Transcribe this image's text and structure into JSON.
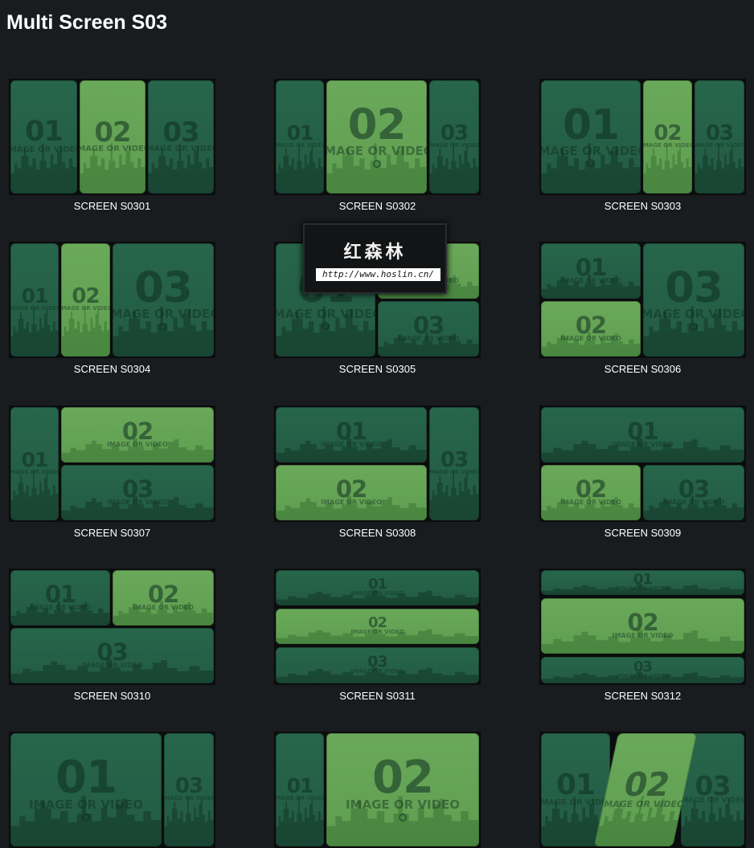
{
  "page": {
    "title": "Multi Screen S03"
  },
  "thumb_text": {
    "sub": "IMAGE OR VIDEO"
  },
  "watermark": {
    "title": "红森林",
    "url": "http://www.hoslin.cn/"
  },
  "colors": {
    "background": "#191c1f",
    "dark_cell": "#27664b",
    "light_cell": "#6aa95a",
    "frame": "#0b0c0d"
  },
  "screens": [
    {
      "name": "SCREEN S0301",
      "cells": [
        {
          "n": "01",
          "tone": "dark"
        },
        {
          "n": "02",
          "tone": "light"
        },
        {
          "n": "03",
          "tone": "dark"
        }
      ]
    },
    {
      "name": "SCREEN S0302",
      "cells": [
        {
          "n": "01",
          "tone": "dark"
        },
        {
          "n": "02",
          "tone": "light"
        },
        {
          "n": "03",
          "tone": "dark"
        }
      ]
    },
    {
      "name": "SCREEN S0303",
      "cells": [
        {
          "n": "01",
          "tone": "dark"
        },
        {
          "n": "02",
          "tone": "light"
        },
        {
          "n": "03",
          "tone": "dark"
        }
      ]
    },
    {
      "name": "SCREEN S0304",
      "cells": [
        {
          "n": "01",
          "tone": "dark"
        },
        {
          "n": "02",
          "tone": "light"
        },
        {
          "n": "03",
          "tone": "dark"
        }
      ]
    },
    {
      "name": "SCREEN S0305",
      "cells": [
        {
          "n": "01",
          "tone": "dark"
        },
        {
          "n": "02",
          "tone": "light"
        },
        {
          "n": "03",
          "tone": "dark"
        }
      ]
    },
    {
      "name": "SCREEN S0306",
      "cells": [
        {
          "n": "01",
          "tone": "dark"
        },
        {
          "n": "02",
          "tone": "light"
        },
        {
          "n": "03",
          "tone": "dark"
        }
      ]
    },
    {
      "name": "SCREEN S0307",
      "cells": [
        {
          "n": "01",
          "tone": "dark"
        },
        {
          "n": "02",
          "tone": "light"
        },
        {
          "n": "03",
          "tone": "dark"
        }
      ]
    },
    {
      "name": "SCREEN S0308",
      "cells": [
        {
          "n": "01",
          "tone": "dark"
        },
        {
          "n": "02",
          "tone": "light"
        },
        {
          "n": "03",
          "tone": "dark"
        }
      ]
    },
    {
      "name": "SCREEN S0309",
      "cells": [
        {
          "n": "01",
          "tone": "dark"
        },
        {
          "n": "02",
          "tone": "light"
        },
        {
          "n": "03",
          "tone": "dark"
        }
      ]
    },
    {
      "name": "SCREEN S0310",
      "cells": [
        {
          "n": "01",
          "tone": "dark"
        },
        {
          "n": "02",
          "tone": "light"
        },
        {
          "n": "03",
          "tone": "dark"
        }
      ]
    },
    {
      "name": "SCREEN S0311",
      "cells": [
        {
          "n": "01",
          "tone": "dark"
        },
        {
          "n": "02",
          "tone": "light"
        },
        {
          "n": "03",
          "tone": "dark"
        }
      ]
    },
    {
      "name": "SCREEN S0312",
      "cells": [
        {
          "n": "01",
          "tone": "dark"
        },
        {
          "n": "02",
          "tone": "light"
        },
        {
          "n": "03",
          "tone": "dark"
        }
      ]
    },
    {
      "name": "",
      "cells": [
        {
          "n": "01",
          "tone": "dark"
        },
        {
          "n": "03",
          "tone": "dark"
        }
      ]
    },
    {
      "name": "",
      "cells": [
        {
          "n": "01",
          "tone": "dark"
        },
        {
          "n": "02",
          "tone": "light"
        }
      ]
    },
    {
      "name": "",
      "cells": [
        {
          "n": "01",
          "tone": "dark"
        },
        {
          "n": "02",
          "tone": "light"
        },
        {
          "n": "03",
          "tone": "dark"
        }
      ]
    }
  ]
}
